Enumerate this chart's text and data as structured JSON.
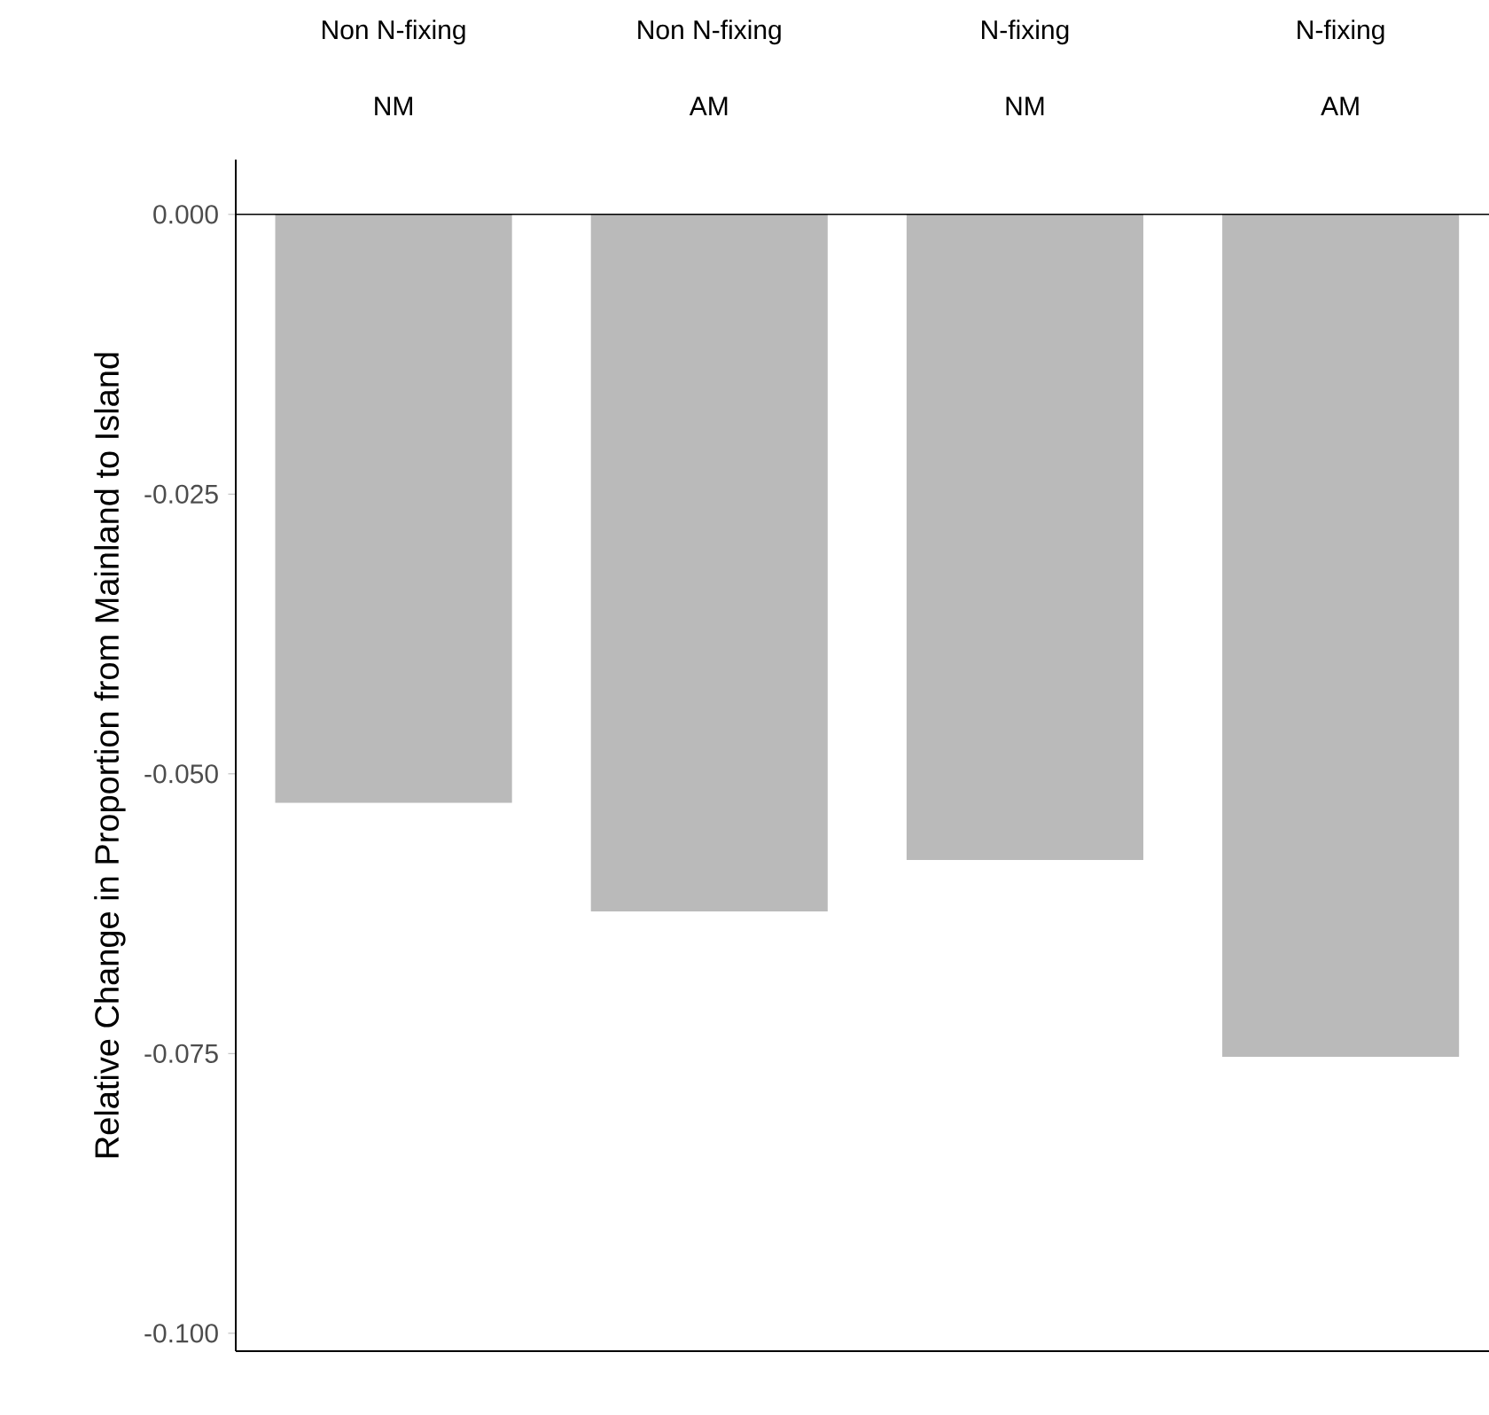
{
  "chart_data": {
    "type": "bar",
    "ylabel": "Relative Change in Proportion from Mainland to Island",
    "categories": [
      "NM",
      "AM",
      "NM",
      "AM"
    ],
    "annotations": [
      "Non N-fixing",
      "Non N-fixing",
      "N-fixing",
      "N-fixing"
    ],
    "values": [
      -0.0526,
      -0.0623,
      -0.0577,
      -0.0753
    ],
    "color": "#bababa",
    "ylim": [
      -0.1016,
      0.0049
    ],
    "yticks": [
      {
        "value": -0.1,
        "label": "-0.100"
      },
      {
        "value": -0.075,
        "label": "-0.075"
      },
      {
        "value": -0.05,
        "label": "-0.050"
      },
      {
        "value": -0.025,
        "label": "-0.025"
      },
      {
        "value": 0,
        "label": "0.000"
      }
    ],
    "ref_lines": [
      {
        "axis": "y",
        "value": 0,
        "color": "#000000"
      }
    ]
  }
}
